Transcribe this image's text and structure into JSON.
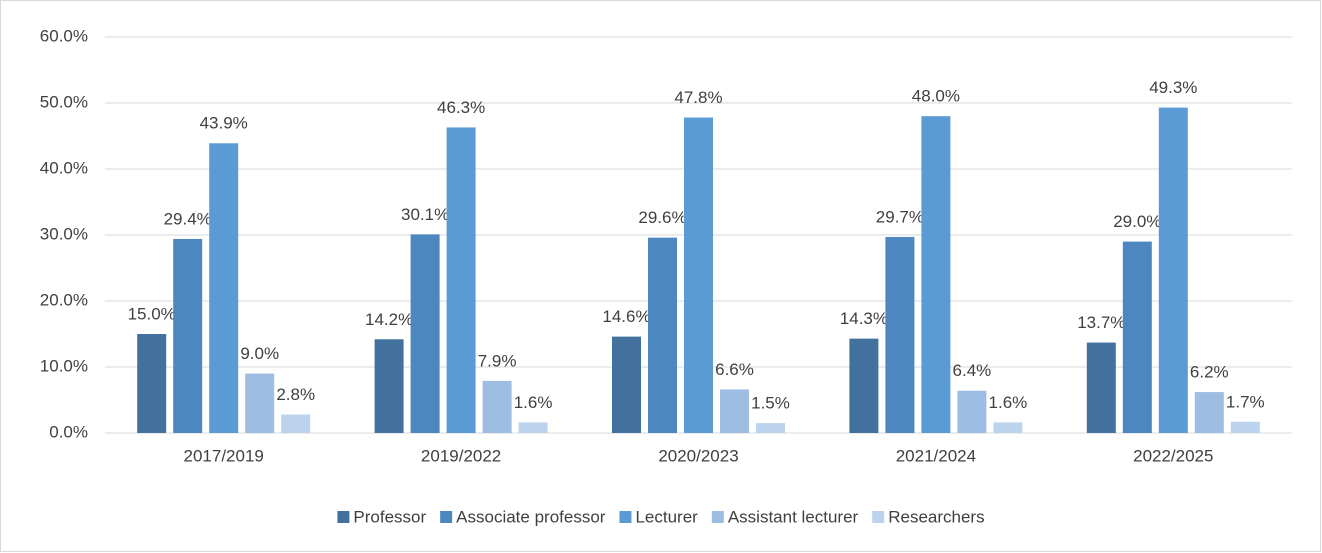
{
  "chart_data": {
    "type": "bar",
    "categories": [
      "2017/2019",
      "2019/2022",
      "2020/2023",
      "2021/2024",
      "2022/2025"
    ],
    "series": [
      {
        "name": "Professor",
        "color": "#41719c",
        "values": [
          15.0,
          14.2,
          14.6,
          14.3,
          13.7
        ],
        "value_labels": [
          "15.0%",
          "14.2%",
          "14.6%",
          "14.3%",
          "13.7%"
        ]
      },
      {
        "name": "Associate professor",
        "color": "#4d87bf",
        "values": [
          29.4,
          30.1,
          29.6,
          29.7,
          29.0
        ],
        "value_labels": [
          "29.4%",
          "30.1%",
          "29.6%",
          "29.7%",
          "29.0%"
        ]
      },
      {
        "name": "Lecturer",
        "color": "#5b9bd5",
        "values": [
          43.9,
          46.3,
          47.8,
          48.0,
          49.3
        ],
        "value_labels": [
          "43.9%",
          "46.3%",
          "47.8%",
          "48.0%",
          "49.3%"
        ]
      },
      {
        "name": "Assistant lecturer",
        "color": "#9dbde3",
        "values": [
          9.0,
          7.9,
          6.6,
          6.4,
          6.2
        ],
        "value_labels": [
          "9.0%",
          "7.9%",
          "6.6%",
          "6.4%",
          "6.2%"
        ]
      },
      {
        "name": "Researchers",
        "color": "#bcd3ee",
        "values": [
          2.8,
          1.6,
          1.5,
          1.6,
          1.7
        ],
        "value_labels": [
          "2.8%",
          "1.6%",
          "1.5%",
          "1.6%",
          "1.7%"
        ]
      }
    ],
    "ylim": [
      0,
      60
    ],
    "yticks": [
      {
        "value": 0,
        "label": "0.0%"
      },
      {
        "value": 10,
        "label": "10.0%"
      },
      {
        "value": 20,
        "label": "20.0%"
      },
      {
        "value": 30,
        "label": "30.0%"
      },
      {
        "value": 40,
        "label": "40.0%"
      },
      {
        "value": 50,
        "label": "50.0%"
      },
      {
        "value": 60,
        "label": "60.0%"
      }
    ],
    "grid": true,
    "legend": "bottom"
  }
}
